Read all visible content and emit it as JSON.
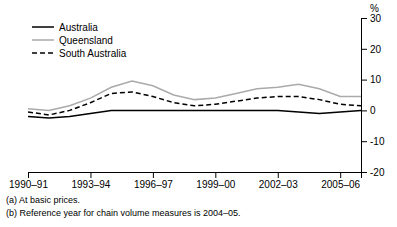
{
  "chart_data": {
    "type": "line",
    "ylabel": "%",
    "categories": [
      "1990–91",
      null,
      null,
      "1993–94",
      null,
      null,
      "1996–97",
      null,
      null,
      "1999–00",
      null,
      null,
      "2002–03",
      null,
      null,
      "2005–06",
      null
    ],
    "series": [
      {
        "name": "Australia",
        "color": "#000000",
        "line_style": "solid",
        "values": [
          -2.0,
          -2.5,
          -2.0,
          -1.0,
          0.0,
          0.0,
          0.0,
          0.0,
          0.0,
          0.0,
          0.0,
          0.0,
          0.0,
          -0.5,
          -1.0,
          -0.5,
          0.0
        ]
      },
      {
        "name": "Queensland",
        "color": "#aaaaaa",
        "line_style": "solid",
        "values": [
          0.5,
          0.0,
          1.5,
          4.0,
          7.5,
          9.5,
          8.0,
          5.0,
          3.5,
          4.0,
          5.5,
          7.0,
          7.5,
          8.5,
          7.0,
          4.5,
          4.5
        ]
      },
      {
        "name": "South Australia",
        "color": "#000000",
        "line_style": "dashed",
        "values": [
          -0.5,
          -1.5,
          0.0,
          2.5,
          5.5,
          6.0,
          4.5,
          2.5,
          1.5,
          2.0,
          3.0,
          4.0,
          4.5,
          4.5,
          3.5,
          2.0,
          1.5
        ]
      }
    ],
    "ylim": [
      -20,
      30
    ],
    "yticks": [
      -20,
      -10,
      0,
      10,
      20,
      30
    ],
    "grid": false,
    "legend": "upper left",
    "annotations": [
      "(a) At basic prices.",
      "(b) Reference year for chain volume measures is 2004–05."
    ]
  }
}
